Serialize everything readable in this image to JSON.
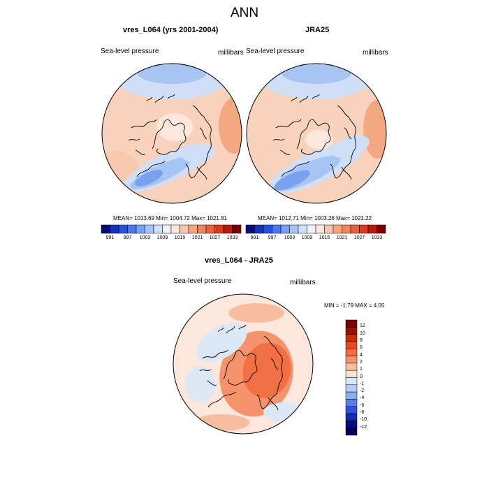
{
  "main_title": "ANN",
  "panels": [
    {
      "title": "vres_L064 (yrs 2001-2004)",
      "left_label": "Sea-level pressure",
      "right_label": "millibars",
      "stats": "MEAN= 1013.69  Min= 1004.72  Max= 1021.81"
    },
    {
      "title": "JRA25",
      "left_label": "Sea-level pressure",
      "right_label": "millibars",
      "stats": "MEAN= 1012.71  Min= 1003.26  Max= 1021.22"
    },
    {
      "title": "vres_L064 - JRA25",
      "left_label": "Sea-level pressure",
      "right_label": "millibars",
      "stats": "MIN =  -1.79 MAX =   4.05"
    }
  ],
  "field_colorbar": {
    "labels": [
      "991",
      "997",
      "1003",
      "1009",
      "1015",
      "1021",
      "1027",
      "1033"
    ],
    "colors": [
      "#0a0a78",
      "#1830b8",
      "#2850e0",
      "#4878f0",
      "#7aa0f0",
      "#a8c4f4",
      "#cfdff8",
      "#eaf2fb",
      "#fde6dc",
      "#f8c8b0",
      "#f4a882",
      "#ef8460",
      "#e8603c",
      "#d83c1c",
      "#b81c08",
      "#7a0000"
    ]
  },
  "diff_colorbar": {
    "labels": [
      "12",
      "10",
      "8",
      "6",
      "4",
      "2",
      "1",
      "0",
      "-1",
      "-2",
      "-4",
      "-6",
      "-8",
      "-10",
      "-12"
    ],
    "colors": [
      "#7a0000",
      "#a00c00",
      "#cc2a08",
      "#e84a20",
      "#f07044",
      "#f5946c",
      "#f8bca0",
      "#fce0d0",
      "#dce8f8",
      "#b8ccf4",
      "#8cacf0",
      "#5880ec",
      "#2c54dc",
      "#1428b8",
      "#0a0a88",
      "#000058"
    ]
  }
}
